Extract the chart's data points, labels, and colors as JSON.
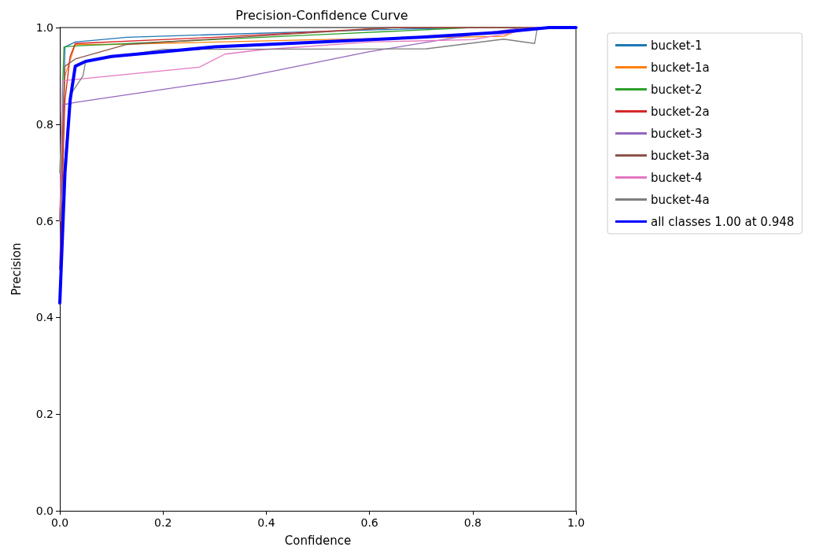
{
  "chart_data": {
    "type": "line",
    "title": "Precision-Confidence Curve",
    "xlabel": "Confidence",
    "ylabel": "Precision",
    "xlim": [
      0,
      1
    ],
    "ylim": [
      0,
      1
    ],
    "xticks": [
      {
        "value": 0,
        "label": "0.0"
      },
      {
        "value": 0.2,
        "label": "0.2"
      },
      {
        "value": 0.4,
        "label": "0.4"
      },
      {
        "value": 0.6,
        "label": "0.6"
      },
      {
        "value": 0.8,
        "label": "0.8"
      },
      {
        "value": 1,
        "label": "1.0"
      }
    ],
    "yticks": [
      {
        "value": 0,
        "label": "0.0"
      },
      {
        "value": 0.2,
        "label": "0.2"
      },
      {
        "value": 0.4,
        "label": "0.4"
      },
      {
        "value": 0.6,
        "label": "0.6"
      },
      {
        "value": 0.8,
        "label": "0.8"
      },
      {
        "value": 1,
        "label": "1.0"
      }
    ],
    "grid": false,
    "legend": "top right",
    "marker": "none",
    "line_style": "solid",
    "series": [
      {
        "name": "bucket-1",
        "color": "#1f77b4",
        "x": [
          0,
          0.01,
          0.03,
          0.13,
          0.6,
          0.8,
          1
        ],
        "values": [
          0.5,
          0.96,
          0.97,
          0.98,
          0.995,
          1,
          1
        ]
      },
      {
        "name": "bucket-1a",
        "color": "#ff7f0e",
        "x": [
          0,
          0.01,
          0.03,
          0.1,
          0.5,
          0.86,
          0.9,
          1
        ],
        "values": [
          0.6,
          0.9,
          0.965,
          0.965,
          0.975,
          0.982,
          1,
          1
        ]
      },
      {
        "name": "bucket-2",
        "color": "#2ca02c",
        "x": [
          0,
          0.008,
          0.03,
          0.5,
          0.8,
          1
        ],
        "values": [
          0.7,
          0.96,
          0.962,
          0.985,
          1,
          1
        ]
      },
      {
        "name": "bucket-2a",
        "color": "#d62728",
        "x": [
          0,
          0.01,
          0.02,
          0.03,
          0.3,
          0.65,
          1
        ],
        "values": [
          0.5,
          0.85,
          0.94,
          0.967,
          0.98,
          1,
          1
        ]
      },
      {
        "name": "bucket-3",
        "color": "#9467bd",
        "x": [
          0,
          0.005,
          0.03,
          0.34,
          0.6,
          0.8,
          0.9,
          1
        ],
        "values": [
          0.6,
          0.84,
          0.845,
          0.894,
          0.95,
          0.985,
          1,
          1
        ]
      },
      {
        "name": "bucket-3a",
        "color": "#8c564b",
        "x": [
          0,
          0.01,
          0.03,
          0.13,
          0.5,
          0.65,
          1
        ],
        "values": [
          0.6,
          0.92,
          0.935,
          0.965,
          0.99,
          1,
          1
        ]
      },
      {
        "name": "bucket-4",
        "color": "#e377c2",
        "x": [
          0,
          0.005,
          0.1,
          0.27,
          0.32,
          0.39,
          0.6,
          0.8,
          0.88,
          0.92,
          1
        ],
        "values": [
          0.6,
          0.89,
          0.9,
          0.918,
          0.945,
          0.954,
          0.97,
          0.975,
          0.99,
          1,
          1
        ]
      },
      {
        "name": "bucket-4a",
        "color": "#7f7f7f",
        "x": [
          0,
          0.02,
          0.045,
          0.05,
          0.2,
          0.71,
          0.86,
          0.92,
          0.925,
          1
        ],
        "values": [
          0.6,
          0.86,
          0.9,
          0.93,
          0.955,
          0.956,
          0.976,
          0.967,
          1,
          1
        ]
      },
      {
        "name": "all classes 1.00 at 0.948",
        "color": "#0000ff",
        "x": [
          0,
          0.01,
          0.02,
          0.03,
          0.05,
          0.1,
          0.2,
          0.3,
          0.5,
          0.7,
          0.85,
          0.948,
          1
        ],
        "values": [
          0.43,
          0.7,
          0.85,
          0.92,
          0.93,
          0.94,
          0.95,
          0.96,
          0.97,
          0.98,
          0.99,
          1,
          1
        ]
      }
    ]
  }
}
